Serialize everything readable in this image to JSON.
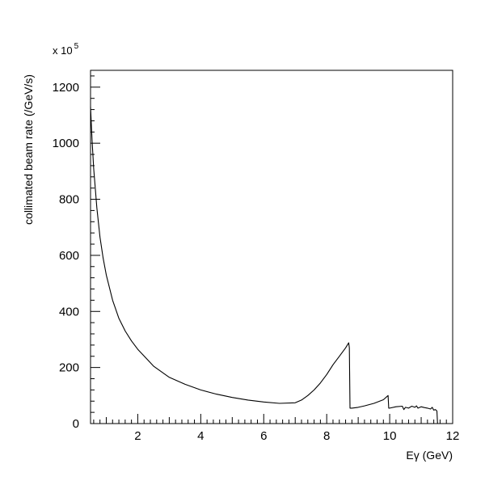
{
  "chart_data": {
    "type": "line",
    "title": "",
    "xlabel": "Eγ (GeV)",
    "ylabel": "collimated beam rate (/GeV/s)",
    "y_multiplier_base": "x 10",
    "y_multiplier_exp": "5",
    "xlim": [
      0.5,
      12
    ],
    "ylim": [
      0,
      1260
    ],
    "x_ticks": [
      2,
      4,
      6,
      8,
      10,
      12
    ],
    "y_ticks": [
      0,
      200,
      400,
      600,
      800,
      1000,
      1200
    ],
    "x_tick_labels": [
      "2",
      "4",
      "6",
      "8",
      "10",
      "12"
    ],
    "y_tick_labels": [
      "0",
      "200",
      "400",
      "600",
      "800",
      "1000",
      "1200"
    ],
    "grid": false,
    "series": [
      {
        "color": "#000000",
        "x": [
          0.5,
          0.55,
          0.6,
          0.7,
          0.8,
          0.9,
          1.0,
          1.2,
          1.4,
          1.6,
          1.8,
          2.0,
          2.25,
          2.5,
          3.0,
          3.5,
          4.0,
          4.5,
          5.0,
          5.5,
          6.0,
          6.5,
          7.0,
          7.2,
          7.4,
          7.6,
          7.8,
          8.0,
          8.2,
          8.4,
          8.6,
          8.7,
          8.72,
          8.74,
          8.8,
          9.0,
          9.2,
          9.5,
          9.8,
          9.95,
          9.97,
          10.0,
          10.2,
          10.4,
          10.45,
          10.5,
          10.6,
          10.7,
          10.8,
          10.85,
          10.9,
          11.0,
          11.1,
          11.2,
          11.3,
          11.35,
          11.4,
          11.45,
          11.5,
          11.52,
          11.55
        ],
        "y": [
          1130,
          1010,
          910,
          770,
          665,
          590,
          530,
          440,
          375,
          330,
          295,
          265,
          235,
          205,
          165,
          140,
          120,
          105,
          93,
          84,
          77,
          72,
          74,
          84,
          100,
          120,
          145,
          175,
          210,
          240,
          270,
          288,
          270,
          55,
          55,
          58,
          63,
          72,
          85,
          100,
          55,
          55,
          60,
          62,
          50,
          58,
          55,
          62,
          58,
          63,
          55,
          60,
          57,
          55,
          52,
          58,
          48,
          50,
          45,
          0,
          0
        ]
      }
    ]
  }
}
